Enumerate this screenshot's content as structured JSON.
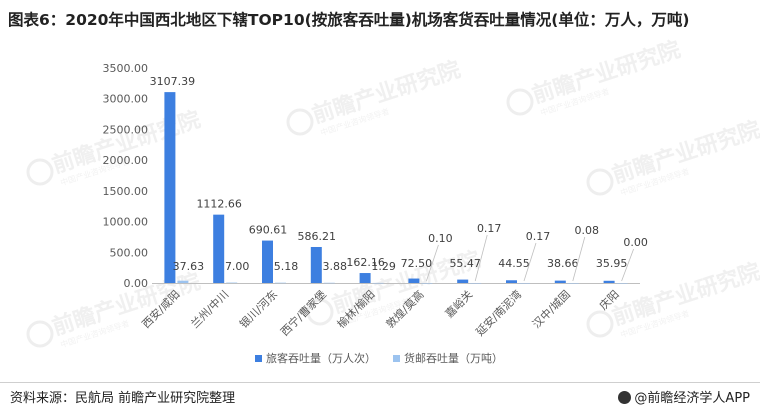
{
  "title": "图表6：2020年中国西北地区下辖TOP10(按旅客吞吐量)机场客货吞吐量情况(单位：万人，万吨)",
  "footer": {
    "source": "资料来源：民航局 前瞻产业研究院整理",
    "brand": "@前瞻经济学人APP"
  },
  "watermark": {
    "text": "前瞻产业研究院",
    "subtext": "中国产业咨询领导者"
  },
  "colors": {
    "series1": "#3d7fe0",
    "series2": "#9cc3ef",
    "axis_text": "#595959",
    "label_text": "#404040",
    "gridline": "#dedede"
  },
  "chart_data": {
    "type": "bar",
    "categories": [
      "西安/咸阳",
      "兰州/中川",
      "银川/河东",
      "西宁/曹家堡",
      "榆林/榆阳",
      "敦煌/莫高",
      "嘉峪关",
      "延安/南泥湾",
      "汉中/城固",
      "庆阳"
    ],
    "series": [
      {
        "name": "旅客吞吐量（万人次）",
        "values": [
          3107.39,
          1112.66,
          690.61,
          586.21,
          162.16,
          72.5,
          55.47,
          44.55,
          38.66,
          35.95
        ],
        "labels": [
          "3107.39",
          "1112.66",
          "690.61",
          "586.21",
          "162.16",
          "72.50",
          "55.47",
          "44.55",
          "38.66",
          "35.95"
        ]
      },
      {
        "name": "货邮吞吐量（万吨）",
        "values": [
          37.63,
          7.0,
          5.18,
          3.88,
          1.29,
          0.1,
          0.17,
          0.17,
          0.08,
          0.0
        ],
        "labels": [
          "37.63",
          "7.00",
          "5.18",
          "3.88",
          "1.29",
          "0.10",
          "0.17",
          "0.17",
          "0.08",
          "0.00"
        ]
      }
    ],
    "ylim": [
      0,
      3500
    ],
    "yticks": [
      "0.00",
      "500.00",
      "1000.00",
      "1500.00",
      "2000.00",
      "2500.00",
      "3000.00",
      "3500.00"
    ],
    "grid": false,
    "legend": "bottom"
  }
}
